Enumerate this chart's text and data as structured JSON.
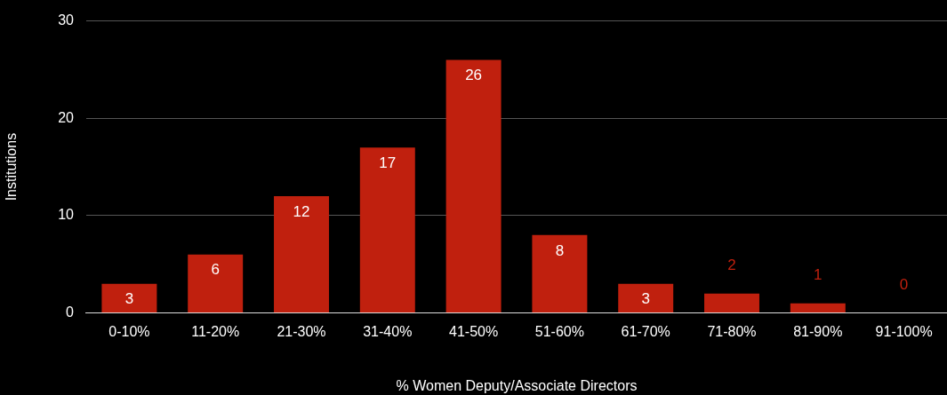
{
  "chart_data": {
    "type": "bar",
    "xlabel": "% Women Deputy/Associate Directors",
    "ylabel": "Institutions",
    "categories": [
      "0-10%",
      "11-20%",
      "21-30%",
      "31-40%",
      "41-50%",
      "51-60%",
      "61-70%",
      "71-80%",
      "81-90%",
      "91-100%"
    ],
    "series": [
      {
        "color": "#c0200e",
        "values": [
          3,
          6,
          12,
          17,
          26,
          8,
          3,
          2,
          1,
          0
        ]
      }
    ],
    "ylim": [
      0,
      30
    ],
    "yticks": [
      0,
      10,
      20,
      30
    ],
    "grid": "y",
    "legend": false,
    "data_labels": true
  }
}
